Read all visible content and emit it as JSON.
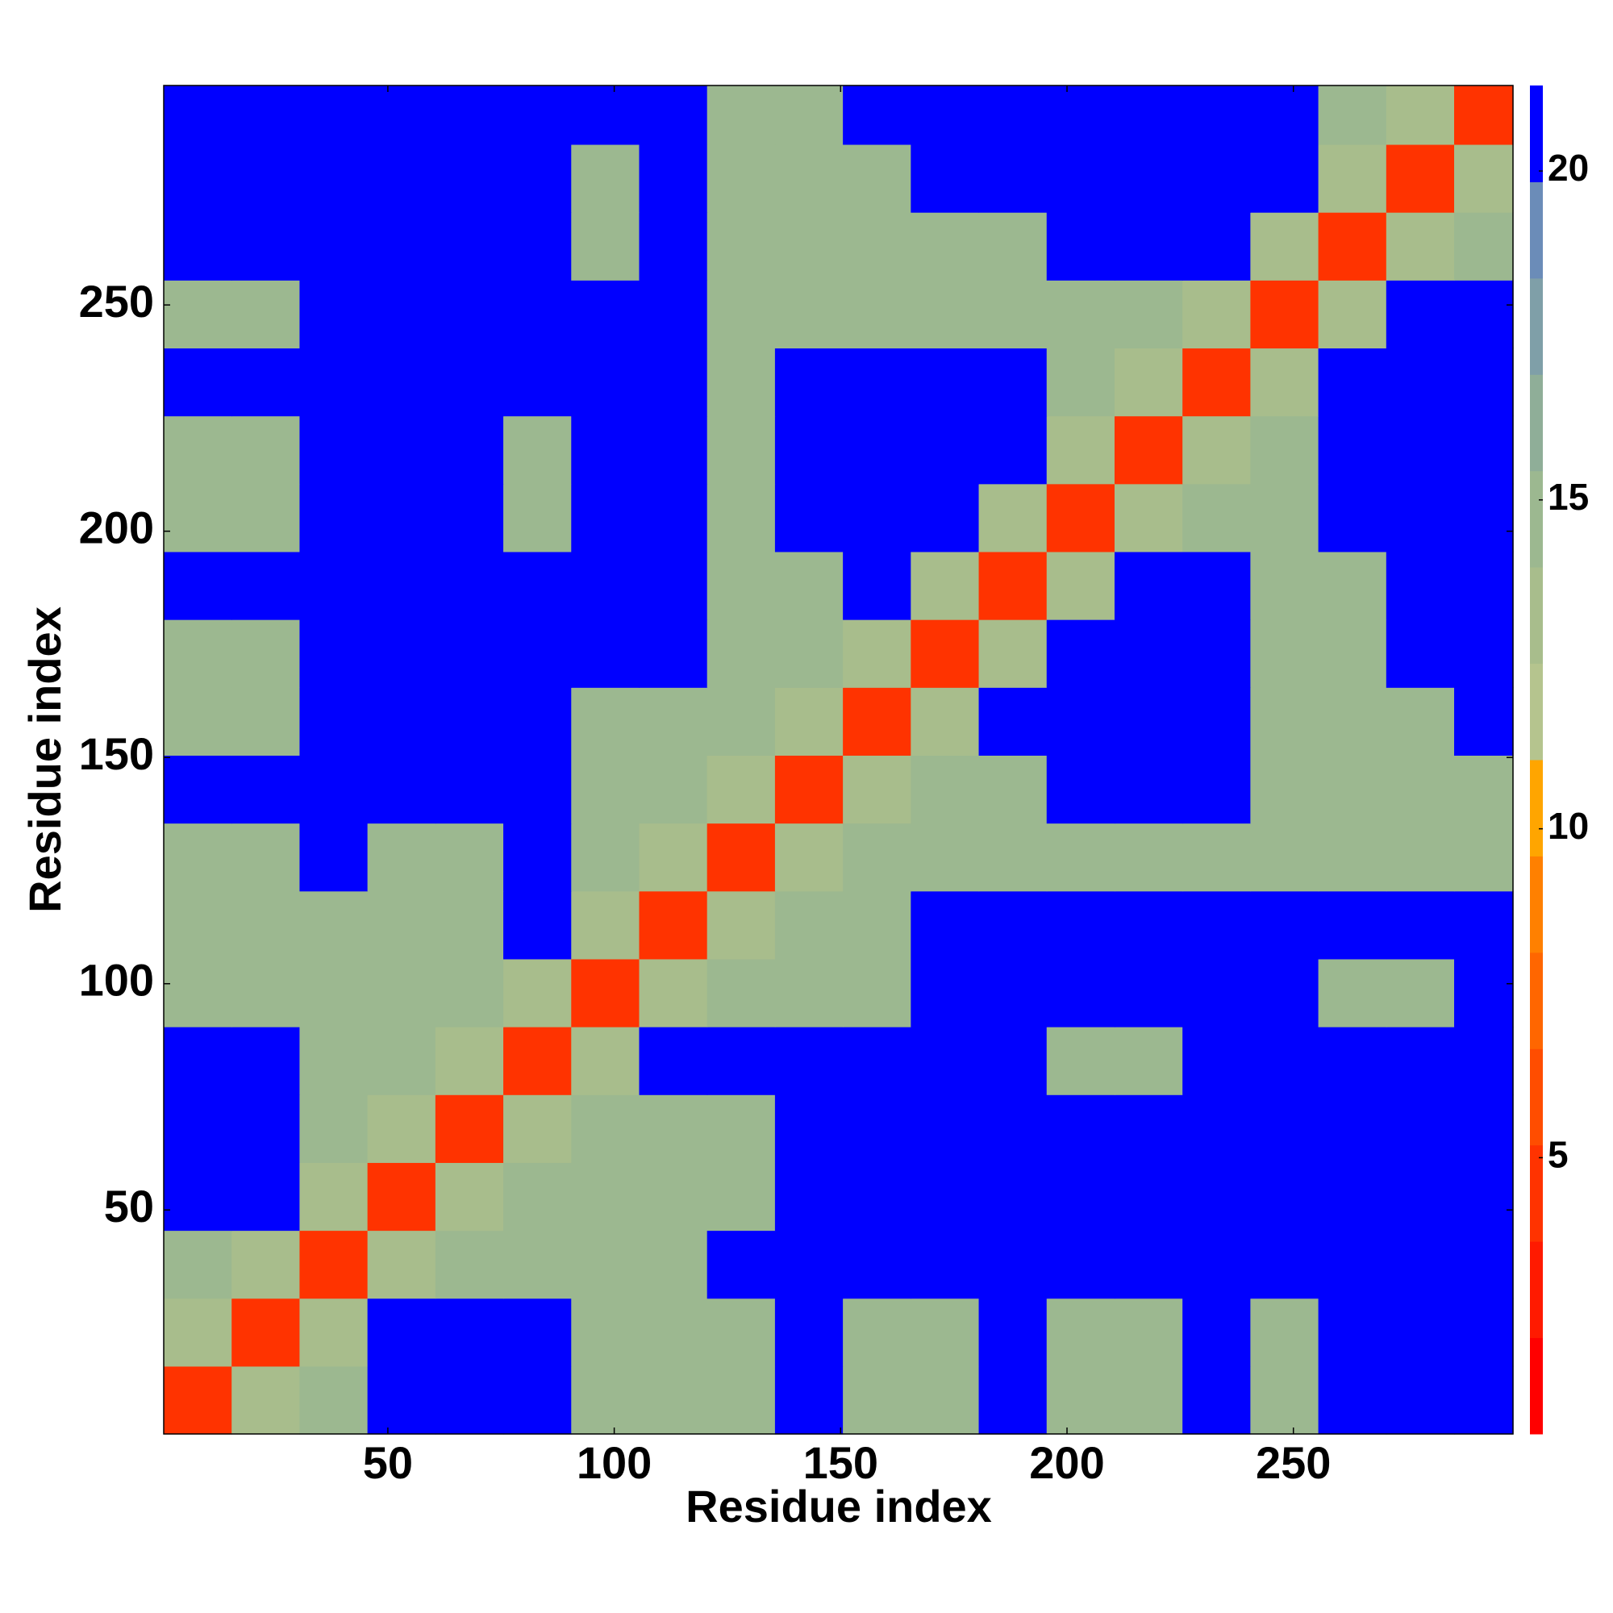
{
  "chart_data": {
    "type": "heatmap",
    "xlabel": "Residue index",
    "ylabel": "Residue index",
    "xlim": [
      0.5,
      298.5
    ],
    "ylim": [
      0.5,
      298.5
    ],
    "xticks": [
      50,
      100,
      150,
      200,
      250
    ],
    "yticks": [
      50,
      100,
      150,
      200,
      250
    ],
    "x_bins": [
      0.5,
      15.5,
      30.5,
      45.5,
      60.5,
      75.5,
      90.5,
      105.5,
      120.5,
      135.5,
      150.5,
      165.5,
      180.5,
      195.5,
      210.5,
      225.5,
      240.5,
      255.5,
      270.5,
      285.5,
      298.5
    ],
    "y_bins": [
      0.5,
      15.5,
      30.5,
      45.5,
      60.5,
      75.5,
      90.5,
      105.5,
      120.5,
      135.5,
      150.5,
      165.5,
      180.5,
      195.5,
      210.5,
      225.5,
      240.5,
      255.5,
      270.5,
      285.5,
      298.5
    ],
    "clim": [
      0.8,
      21.3
    ],
    "cticks": [
      5,
      10,
      15,
      20
    ],
    "colors": [
      "#ff0000",
      "#ff1a00",
      "#ff3300",
      "#ff4d00",
      "#ff6600",
      "#ff8000",
      "#ffa500",
      "#b5c48e",
      "#a8bd8c",
      "#9cb890",
      "#8fae98",
      "#7f9fa8",
      "#6b8cb8",
      "#0000ff"
    ],
    "z": [
      [
        5,
        13,
        14,
        21,
        21,
        21,
        14,
        14,
        14,
        21,
        14,
        14,
        21,
        14,
        14,
        21,
        14,
        21,
        21,
        21
      ],
      [
        13,
        5,
        13,
        21,
        21,
        21,
        14,
        14,
        14,
        21,
        14,
        14,
        21,
        14,
        14,
        21,
        14,
        21,
        21,
        21
      ],
      [
        14,
        13,
        5,
        13,
        14,
        14,
        14,
        14,
        21,
        21,
        21,
        21,
        21,
        21,
        21,
        21,
        21,
        21,
        21,
        21
      ],
      [
        21,
        21,
        13,
        5,
        13,
        14,
        14,
        14,
        14,
        21,
        21,
        21,
        21,
        21,
        21,
        21,
        21,
        21,
        21,
        21
      ],
      [
        21,
        21,
        14,
        13,
        5,
        13,
        14,
        14,
        14,
        21,
        21,
        21,
        21,
        21,
        21,
        21,
        21,
        21,
        21,
        21
      ],
      [
        21,
        21,
        14,
        14,
        13,
        5,
        13,
        21,
        21,
        21,
        21,
        21,
        21,
        14,
        14,
        21,
        21,
        21,
        21,
        21
      ],
      [
        14,
        14,
        14,
        14,
        14,
        13,
        5,
        13,
        14,
        14,
        14,
        21,
        21,
        21,
        21,
        21,
        21,
        14,
        14,
        21
      ],
      [
        14,
        14,
        14,
        14,
        14,
        21,
        13,
        5,
        13,
        14,
        14,
        21,
        21,
        21,
        21,
        21,
        21,
        21,
        21,
        21
      ],
      [
        14,
        14,
        21,
        14,
        14,
        21,
        14,
        13,
        5,
        13,
        14,
        14,
        14,
        14,
        14,
        14,
        14,
        14,
        14,
        14
      ],
      [
        21,
        21,
        21,
        21,
        21,
        21,
        14,
        14,
        13,
        5,
        13,
        14,
        14,
        21,
        21,
        21,
        14,
        14,
        14,
        14
      ],
      [
        14,
        14,
        21,
        21,
        21,
        21,
        14,
        14,
        14,
        13,
        5,
        13,
        21,
        21,
        21,
        21,
        14,
        14,
        14,
        21
      ],
      [
        14,
        14,
        21,
        21,
        21,
        21,
        21,
        21,
        14,
        14,
        13,
        5,
        13,
        21,
        21,
        21,
        14,
        14,
        21,
        21
      ],
      [
        21,
        21,
        21,
        21,
        21,
        21,
        21,
        21,
        14,
        14,
        21,
        13,
        5,
        13,
        21,
        21,
        14,
        14,
        21,
        21
      ],
      [
        14,
        14,
        21,
        21,
        21,
        14,
        21,
        21,
        14,
        21,
        21,
        21,
        13,
        5,
        13,
        14,
        14,
        21,
        21,
        21
      ],
      [
        14,
        14,
        21,
        21,
        21,
        14,
        21,
        21,
        14,
        21,
        21,
        21,
        21,
        13,
        5,
        13,
        14,
        21,
        21,
        21
      ],
      [
        21,
        21,
        21,
        21,
        21,
        21,
        21,
        21,
        14,
        21,
        21,
        21,
        21,
        14,
        13,
        5,
        13,
        21,
        21,
        21
      ],
      [
        14,
        14,
        21,
        21,
        21,
        21,
        21,
        21,
        14,
        14,
        14,
        14,
        14,
        14,
        14,
        13,
        5,
        13,
        21,
        21
      ],
      [
        21,
        21,
        21,
        21,
        21,
        21,
        14,
        21,
        14,
        14,
        14,
        14,
        14,
        21,
        21,
        21,
        13,
        5,
        13,
        14
      ],
      [
        21,
        21,
        21,
        21,
        21,
        21,
        14,
        21,
        14,
        14,
        14,
        21,
        21,
        21,
        21,
        21,
        21,
        13,
        5,
        13
      ],
      [
        21,
        21,
        21,
        21,
        21,
        21,
        21,
        21,
        14,
        14,
        21,
        21,
        21,
        21,
        21,
        21,
        21,
        14,
        13,
        5
      ]
    ]
  }
}
